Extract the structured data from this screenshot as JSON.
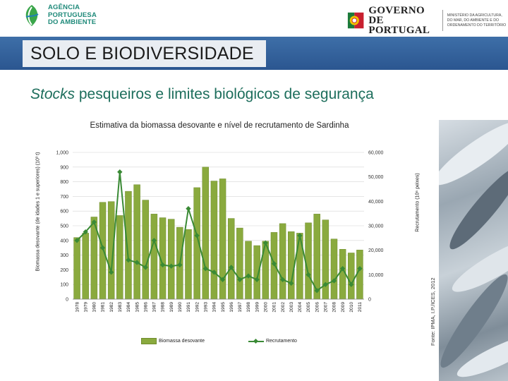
{
  "header": {
    "agency_name": [
      "AGÊNCIA",
      "PORTUGUESA",
      "DO AMBIENTE"
    ],
    "gov_name": [
      "GOVERNO DE",
      "PORTUGAL"
    ],
    "ministry": "Ministério da Agricultura, do Mar, do Ambiente e do Ordenamento do Território"
  },
  "banner": {
    "title": "SOLO E BIODIVERSIDADE"
  },
  "subtitle": {
    "italic": "Stocks",
    "rest": " pesqueiros e limites biológicos de segurança"
  },
  "source": "Fonte: IPMA, I.P./ICES, 2012",
  "colors": {
    "bar": "#8aaa3e",
    "line": "#3a8a35",
    "banner": "#2f5c96",
    "subtitle": "#1d6e5c"
  },
  "chart_data": {
    "type": "bar+line",
    "title": "Estimativa da biomassa desovante e nível de recrutamento de Sardinha",
    "categories": [
      "1978",
      "1979",
      "1980",
      "1981",
      "1982",
      "1983",
      "1984",
      "1985",
      "1986",
      "1987",
      "1988",
      "1989",
      "1990",
      "1991",
      "1992",
      "1993",
      "1994",
      "1995",
      "1996",
      "1997",
      "1998",
      "1999",
      "2000",
      "2001",
      "2002",
      "2003",
      "2004",
      "2005",
      "2006",
      "2007",
      "2008",
      "2009",
      "2010",
      "2011"
    ],
    "series": [
      {
        "name": "Biomassa desovante",
        "axis": "left",
        "kind": "bar",
        "values": [
          420,
          450,
          560,
          660,
          665,
          570,
          735,
          780,
          675,
          580,
          555,
          545,
          490,
          475,
          760,
          900,
          805,
          820,
          550,
          485,
          395,
          365,
          395,
          455,
          515,
          460,
          450,
          520,
          580,
          540,
          410,
          340,
          315,
          335
        ]
      },
      {
        "name": "Recrutamento",
        "axis": "right",
        "kind": "line",
        "values": [
          24000,
          27500,
          31500,
          21000,
          11000,
          52000,
          16000,
          15000,
          13000,
          24000,
          14000,
          13500,
          14000,
          37000,
          26000,
          12500,
          11000,
          8000,
          13000,
          8000,
          9500,
          8000,
          23000,
          14500,
          8000,
          6500,
          26000,
          10000,
          3500,
          6000,
          7500,
          12500,
          6000,
          12500
        ]
      }
    ],
    "ylabel_left": "Biomassa desovante (de idades 1 e superiores) (10³ t)",
    "ylabel_right": "Recrutamento (10⁶ peixes)",
    "ylim_left": [
      0,
      1000
    ],
    "ylim_right": [
      0,
      60000
    ],
    "yticks_left": [
      "0",
      "100",
      "200",
      "300",
      "400",
      "500",
      "600",
      "700",
      "800",
      "900",
      "1,000"
    ],
    "yticks_right": [
      "0",
      "10,000",
      "20,000",
      "30,000",
      "40,000",
      "50,000",
      "60,000"
    ],
    "legend": [
      "Biomassa desovante",
      "Recrutamento"
    ],
    "grid": true
  }
}
